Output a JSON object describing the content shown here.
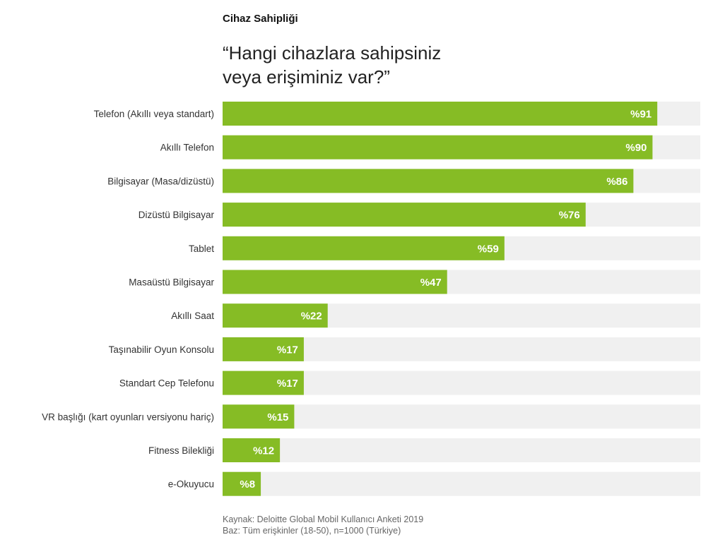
{
  "header": {
    "section_title": "Cihaz Sahipliği",
    "question_line1": "“Hangi cihazlara sahipsiniz",
    "question_line2": "veya erişiminiz var?”"
  },
  "chart_data": {
    "type": "bar",
    "orientation": "horizontal",
    "categories": [
      "Telefon (Akıllı veya standart)",
      "Akıllı Telefon",
      "Bilgisayar (Masa/dizüstü)",
      "Dizüstü Bilgisayar",
      "Tablet",
      "Masaüstü Bilgisayar",
      "Akıllı Saat",
      "Taşınabilir Oyun Konsolu",
      "Standart Cep Telefonu",
      "VR başlığı (kart oyunları versiyonu hariç)",
      "Fitness Bilekliği",
      "e-Okuyucu"
    ],
    "values": [
      91,
      90,
      86,
      76,
      59,
      47,
      22,
      17,
      17,
      15,
      12,
      8
    ],
    "value_labels": [
      "%91",
      "%90",
      "%86",
      "%76",
      "%59",
      "%47",
      "%22",
      "%17",
      "%17",
      "%15",
      "%12",
      "%8"
    ],
    "xlim": [
      0,
      100
    ],
    "bar_color": "#86bc25",
    "track_color": "#f0f0f0",
    "label_color": "#ffffff"
  },
  "footer": {
    "source": "Kaynak: Deloitte Global Mobil Kullanıcı Anketi 2019",
    "base": "Baz: Tüm erişkinler (18-50), n=1000 (Türkiye)"
  }
}
